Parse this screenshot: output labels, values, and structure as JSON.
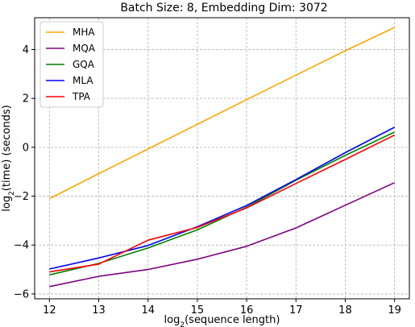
{
  "chart_data": {
    "type": "line",
    "title": "Batch Size: 8, Embedding Dim: 3072",
    "xlabel": "(sequence length)",
    "xlabel_prefix": "log",
    "ylabel": "(time) (seconds)",
    "ylabel_prefix": "log",
    "log_subscript": "2",
    "x": [
      12,
      13,
      14,
      15,
      16,
      17,
      18,
      19
    ],
    "xlim": [
      11.7,
      19.3
    ],
    "ylim": [
      -6.2,
      5.3
    ],
    "xticks": [
      12,
      13,
      14,
      15,
      16,
      17,
      18,
      19
    ],
    "yticks": [
      -6,
      -4,
      -2,
      0,
      2,
      4
    ],
    "grid": true,
    "legend_position": "upper-left",
    "series": [
      {
        "name": "MHA",
        "color": "#FFA500",
        "values": [
          -2.1,
          -1.08,
          -0.07,
          0.94,
          1.95,
          2.95,
          3.95,
          4.9
        ]
      },
      {
        "name": "MQA",
        "color": "#800080",
        "values": [
          -5.7,
          -5.28,
          -5.0,
          -4.58,
          -4.05,
          -3.3,
          -2.37,
          -1.45
        ]
      },
      {
        "name": "GQA",
        "color": "#008000",
        "values": [
          -5.22,
          -4.75,
          -4.12,
          -3.38,
          -2.45,
          -1.35,
          -0.33,
          0.62
        ]
      },
      {
        "name": "MLA",
        "color": "#0000FF",
        "values": [
          -4.98,
          -4.53,
          -4.02,
          -3.25,
          -2.38,
          -1.32,
          -0.22,
          0.82
        ]
      },
      {
        "name": "TPA",
        "color": "#FF0000",
        "values": [
          -5.1,
          -4.78,
          -3.8,
          -3.28,
          -2.48,
          -1.48,
          -0.5,
          0.5
        ]
      }
    ]
  }
}
